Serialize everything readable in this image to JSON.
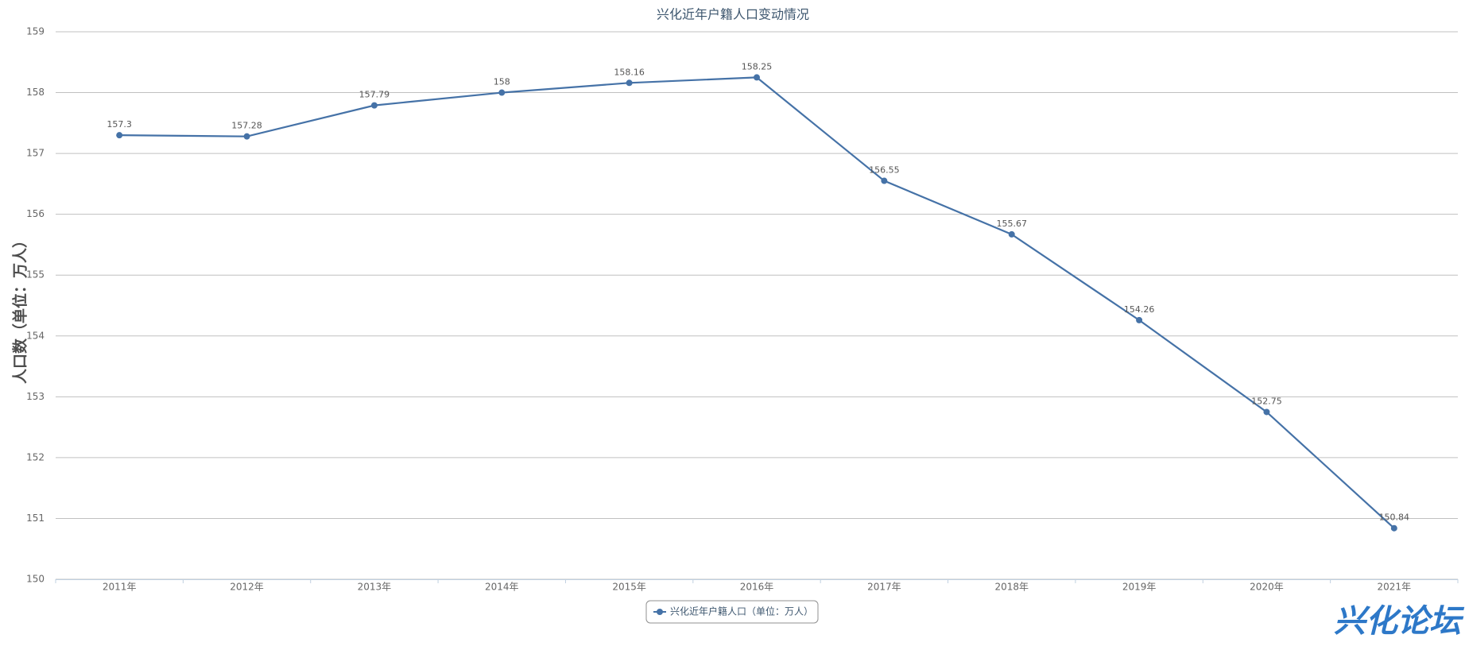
{
  "chart_data": {
    "type": "line",
    "title": "兴化近年户籍人口变动情况",
    "y_label": "人口数（单位：万人）",
    "categories": [
      "2011年",
      "2012年",
      "2013年",
      "2014年",
      "2015年",
      "2016年",
      "2017年",
      "2018年",
      "2019年",
      "2020年",
      "2021年"
    ],
    "series": [
      {
        "name": "兴化近年户籍人口（单位：万人）",
        "color": "#4572a7",
        "values": [
          157.3,
          157.28,
          157.79,
          158,
          158.16,
          158.25,
          156.55,
          155.67,
          154.26,
          152.75,
          150.84
        ]
      }
    ],
    "ylim": [
      150,
      159
    ],
    "yticks": [
      150,
      151,
      152,
      153,
      154,
      155,
      156,
      157,
      158,
      159
    ],
    "grid": true,
    "legend": "bottom",
    "watermark": "兴化论坛"
  }
}
